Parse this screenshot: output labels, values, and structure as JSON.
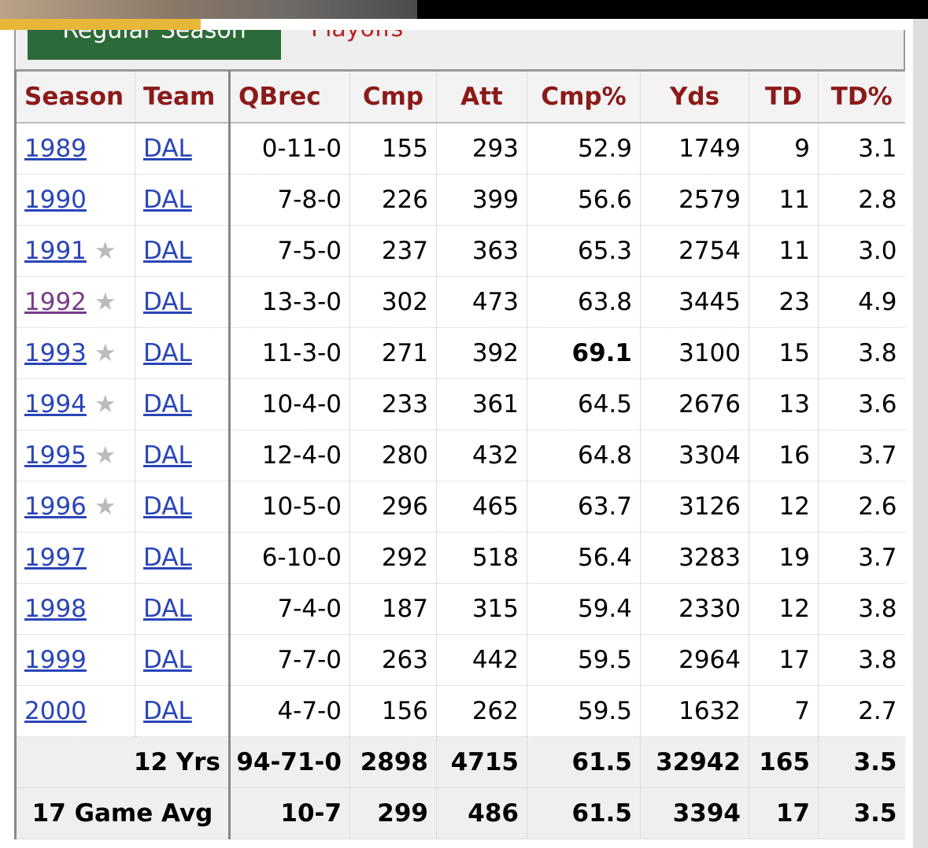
{
  "tabs": [
    "Regular Season",
    "Playoffs"
  ],
  "table": {
    "columns": [
      "Season",
      "Team",
      "QBrec",
      "Cmp",
      "Att",
      "Cmp%",
      "Yds",
      "TD",
      "TD%"
    ],
    "rows": [
      {
        "cells": [
          "1989",
          "DAL",
          "0-11-0",
          "155",
          "293",
          "52.9",
          "1749",
          "9",
          "3.1"
        ]
      },
      {
        "cells": [
          "1990",
          "DAL",
          "7-8-0",
          "226",
          "399",
          "56.6",
          "2579",
          "11",
          "2.8"
        ]
      },
      {
        "cells": [
          "1991",
          "DAL",
          "7-5-0",
          "237",
          "363",
          "65.3",
          "2754",
          "11",
          "3.0"
        ],
        "star": "★"
      },
      {
        "cells": [
          "1992",
          "DAL",
          "13-3-0",
          "302",
          "473",
          "63.8",
          "3445",
          "23",
          "4.9"
        ],
        "star": "★",
        "visited": true
      },
      {
        "cells": [
          "1993",
          "DAL",
          "11-3-0",
          "271",
          "392",
          "69.1",
          "3100",
          "15",
          "3.8"
        ],
        "star": "★",
        "bold": 5
      },
      {
        "cells": [
          "1994",
          "DAL",
          "10-4-0",
          "233",
          "361",
          "64.5",
          "2676",
          "13",
          "3.6"
        ],
        "star": "★"
      },
      {
        "cells": [
          "1995",
          "DAL",
          "12-4-0",
          "280",
          "432",
          "64.8",
          "3304",
          "16",
          "3.7"
        ],
        "star": "★"
      },
      {
        "cells": [
          "1996",
          "DAL",
          "10-5-0",
          "296",
          "465",
          "63.7",
          "3126",
          "12",
          "2.6"
        ],
        "star": "★"
      },
      {
        "cells": [
          "1997",
          "DAL",
          "6-10-0",
          "292",
          "518",
          "56.4",
          "3283",
          "19",
          "3.7"
        ]
      },
      {
        "cells": [
          "1998",
          "DAL",
          "7-4-0",
          "187",
          "315",
          "59.4",
          "2330",
          "12",
          "3.8"
        ]
      },
      {
        "cells": [
          "1999",
          "DAL",
          "7-7-0",
          "263",
          "442",
          "59.5",
          "2964",
          "17",
          "3.8"
        ]
      },
      {
        "cells": [
          "2000",
          "DAL",
          "4-7-0",
          "156",
          "262",
          "59.5",
          "1632",
          "7",
          "2.7"
        ]
      }
    ],
    "footer": [
      [
        "12 Yrs",
        "94-71-0",
        "2898",
        "4715",
        "61.5",
        "32942",
        "165",
        "3.5"
      ],
      [
        "17 Game Avg",
        "10-7",
        "299",
        "486",
        "61.5",
        "3394",
        "17",
        "3.5"
      ]
    ]
  }
}
